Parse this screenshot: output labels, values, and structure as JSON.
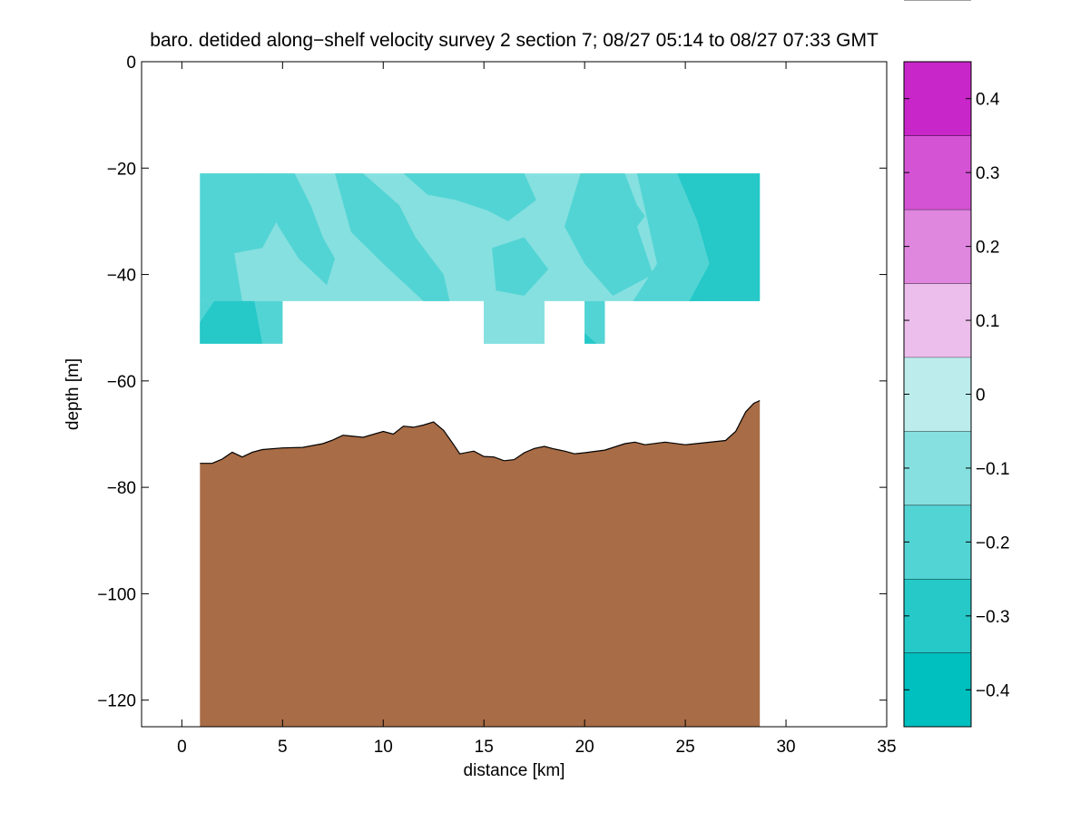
{
  "chart_data": {
    "type": "filled_contour_section",
    "title": "baro. detided along−shelf velocity survey 2 section 7; 08/27 05:14 to 08/27 07:33 GMT",
    "xlabel": "distance [km]",
    "ylabel": "depth [m]",
    "xlim": [
      -2,
      35
    ],
    "ylim": [
      -125,
      0
    ],
    "xticks": [
      0,
      5,
      10,
      15,
      20,
      25,
      30,
      35
    ],
    "xtick_labels": [
      "0",
      "5",
      "10",
      "15",
      "20",
      "25",
      "30",
      "35"
    ],
    "yticks": [
      0,
      -20,
      -40,
      -60,
      -80,
      -100,
      -120
    ],
    "ytick_labels": [
      "0",
      "−20",
      "−40",
      "−60",
      "−80",
      "−100",
      "−120"
    ],
    "grid": false,
    "colorbar": {
      "levels": [
        -0.45,
        -0.35,
        -0.25,
        -0.15,
        -0.05,
        0.05,
        0.15,
        0.25,
        0.35,
        0.45
      ],
      "colors": [
        "#00bfbf",
        "#26c8c8",
        "#53d4d4",
        "#86e0e0",
        "#bdecec",
        "#ecbeec",
        "#df86df",
        "#d453d4",
        "#c826c8",
        "#bf00bf"
      ],
      "ticks": [
        -0.4,
        -0.3,
        -0.2,
        -0.1,
        0,
        0.1,
        0.2,
        0.3,
        0.4
      ],
      "tick_labels": [
        "−0.4",
        "−0.3",
        "−0.2",
        "−0.1",
        "0",
        "0.1",
        "0.2",
        "0.3",
        "0.4"
      ]
    },
    "velocity_bands": [
      {
        "name": "upper",
        "x_range": [
          0.9,
          28.7
        ],
        "depth_range": [
          -21,
          -45
        ],
        "base_value": -0.1
      },
      {
        "name": "lower",
        "x_range": [
          0.9,
          21.0
        ],
        "depth_range": [
          -45,
          -53
        ],
        "data_x_ranges": [
          [
            0.9,
            5.0
          ],
          [
            15.0,
            18.0
          ],
          [
            20.0,
            21.0
          ]
        ],
        "base_value": -0.2
      }
    ],
    "contour_patches": [
      {
        "value": -0.2,
        "points": [
          [
            0.9,
            -21
          ],
          [
            4.0,
            -21
          ],
          [
            5.0,
            -28
          ],
          [
            4.0,
            -35
          ],
          [
            2.6,
            -36
          ],
          [
            3.0,
            -45
          ],
          [
            0.9,
            -45
          ]
        ]
      },
      {
        "value": -0.2,
        "points": [
          [
            3.6,
            -21
          ],
          [
            5.6,
            -21
          ],
          [
            6.4,
            -27
          ],
          [
            7.0,
            -33
          ],
          [
            7.6,
            -37
          ],
          [
            7.2,
            -42
          ],
          [
            5.8,
            -37
          ],
          [
            4.8,
            -31
          ]
        ]
      },
      {
        "value": -0.2,
        "points": [
          [
            7.6,
            -21
          ],
          [
            9.0,
            -21
          ],
          [
            10.8,
            -27
          ],
          [
            11.6,
            -33
          ],
          [
            13.0,
            -40
          ],
          [
            13.3,
            -45
          ],
          [
            12.0,
            -45
          ],
          [
            10.0,
            -38
          ],
          [
            8.4,
            -32
          ]
        ]
      },
      {
        "value": -0.2,
        "points": [
          [
            11.0,
            -21
          ],
          [
            17.0,
            -21
          ],
          [
            17.6,
            -26
          ],
          [
            16.2,
            -30
          ],
          [
            15.2,
            -28
          ],
          [
            13.6,
            -26
          ],
          [
            12.2,
            -25
          ]
        ]
      },
      {
        "value": -0.2,
        "points": [
          [
            15.4,
            -35
          ],
          [
            17.0,
            -33
          ],
          [
            18.2,
            -39
          ],
          [
            17.0,
            -44
          ],
          [
            15.6,
            -43
          ]
        ]
      },
      {
        "value": -0.2,
        "points": [
          [
            19.8,
            -21
          ],
          [
            22.0,
            -21
          ],
          [
            22.6,
            -27
          ],
          [
            23.0,
            -29
          ],
          [
            22.6,
            -31
          ],
          [
            23.4,
            -40
          ],
          [
            21.4,
            -44
          ],
          [
            20.0,
            -38
          ],
          [
            19.0,
            -31
          ]
        ]
      },
      {
        "value": -0.2,
        "points": [
          [
            22.6,
            -21
          ],
          [
            24.8,
            -21
          ],
          [
            25.6,
            -28
          ],
          [
            26.4,
            -37
          ],
          [
            25.6,
            -45
          ],
          [
            22.4,
            -45
          ],
          [
            23.6,
            -38
          ]
        ]
      },
      {
        "value": -0.3,
        "points": [
          [
            24.6,
            -21
          ],
          [
            28.7,
            -21
          ],
          [
            28.7,
            -45
          ],
          [
            25.2,
            -45
          ],
          [
            26.2,
            -38
          ],
          [
            25.6,
            -30
          ]
        ]
      },
      {
        "value": -0.2,
        "points": [
          [
            0.9,
            -45
          ],
          [
            5.0,
            -45
          ],
          [
            5.0,
            -53
          ],
          [
            0.9,
            -53
          ]
        ]
      },
      {
        "value": -0.3,
        "points": [
          [
            1.6,
            -45
          ],
          [
            3.6,
            -45
          ],
          [
            4.0,
            -53
          ],
          [
            0.9,
            -53
          ],
          [
            0.9,
            -49
          ]
        ]
      },
      {
        "value": -0.1,
        "points": [
          [
            15.0,
            -45
          ],
          [
            18.0,
            -45
          ],
          [
            18.0,
            -53
          ],
          [
            15.0,
            -53
          ]
        ]
      },
      {
        "value": -0.2,
        "points": [
          [
            20.0,
            -45
          ],
          [
            21.0,
            -45
          ],
          [
            21.0,
            -53
          ],
          [
            20.0,
            -53
          ]
        ]
      },
      {
        "value": -0.3,
        "points": [
          [
            20.0,
            -51
          ],
          [
            20.6,
            -53
          ],
          [
            20.0,
            -53
          ]
        ]
      }
    ],
    "bathymetry": {
      "fill_color": "#a86c46",
      "x_range": [
        0.9,
        28.7
      ],
      "bottom_depth": [
        [
          0.9,
          -75.5
        ],
        [
          1.5,
          -75.5
        ],
        [
          2.0,
          -74.7
        ],
        [
          2.5,
          -73.4
        ],
        [
          3.0,
          -74.3
        ],
        [
          3.5,
          -73.4
        ],
        [
          4.0,
          -72.9
        ],
        [
          5.0,
          -72.6
        ],
        [
          6.0,
          -72.5
        ],
        [
          7.0,
          -71.8
        ],
        [
          7.5,
          -71.1
        ],
        [
          8.0,
          -70.2
        ],
        [
          9.0,
          -70.6
        ],
        [
          10.0,
          -69.5
        ],
        [
          10.5,
          -70.0
        ],
        [
          11.0,
          -68.5
        ],
        [
          11.5,
          -68.7
        ],
        [
          12.0,
          -68.3
        ],
        [
          12.5,
          -67.7
        ],
        [
          13.0,
          -69.3
        ],
        [
          13.5,
          -72.0
        ],
        [
          13.8,
          -73.7
        ],
        [
          14.5,
          -73.2
        ],
        [
          15.0,
          -74.2
        ],
        [
          15.5,
          -74.3
        ],
        [
          16.0,
          -75.0
        ],
        [
          16.5,
          -74.8
        ],
        [
          17.0,
          -73.5
        ],
        [
          17.5,
          -72.7
        ],
        [
          18.0,
          -72.3
        ],
        [
          18.5,
          -72.8
        ],
        [
          19.0,
          -73.2
        ],
        [
          19.5,
          -73.7
        ],
        [
          20.0,
          -73.5
        ],
        [
          21.0,
          -73.0
        ],
        [
          22.0,
          -71.8
        ],
        [
          22.5,
          -71.5
        ],
        [
          23.0,
          -72.0
        ],
        [
          24.0,
          -71.5
        ],
        [
          25.0,
          -72.0
        ],
        [
          26.0,
          -71.6
        ],
        [
          27.0,
          -71.2
        ],
        [
          27.5,
          -69.5
        ],
        [
          28.0,
          -65.8
        ],
        [
          28.4,
          -64.2
        ],
        [
          28.7,
          -63.7
        ]
      ]
    }
  }
}
